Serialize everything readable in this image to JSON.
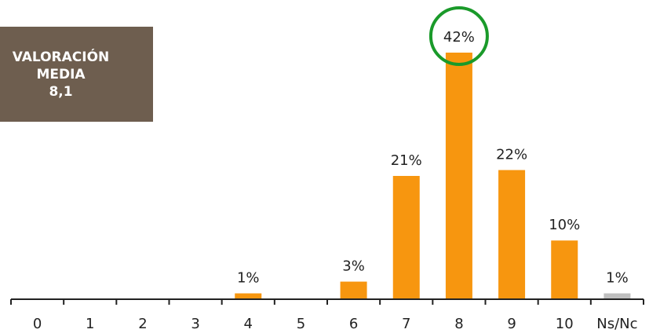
{
  "stats_box": {
    "line1": "VALORACIÓN",
    "line2": "MEDIA",
    "line3": "8,1",
    "background": "#6e5e4f"
  },
  "chart_data": {
    "type": "bar",
    "categories": [
      "0",
      "1",
      "2",
      "3",
      "4",
      "5",
      "6",
      "7",
      "8",
      "9",
      "10",
      "Ns/Nc"
    ],
    "values": [
      null,
      null,
      null,
      null,
      1,
      null,
      3,
      21,
      42,
      22,
      10,
      1
    ],
    "labels": [
      "",
      "",
      "",
      "",
      "1%",
      "",
      "3%",
      "21%",
      "42%",
      "22%",
      "10%",
      "1%"
    ],
    "colors": [
      "#f7960f",
      "#f7960f",
      "#f7960f",
      "#f7960f",
      "#f7960f",
      "#f7960f",
      "#f7960f",
      "#f7960f",
      "#f7960f",
      "#f7960f",
      "#f7960f",
      "#bfbfbf"
    ],
    "highlight_category": "8",
    "highlight_color": "#1a9a2a",
    "title": "",
    "xlabel": "",
    "ylabel": "",
    "ylim": [
      0,
      42
    ],
    "grid": false
  }
}
